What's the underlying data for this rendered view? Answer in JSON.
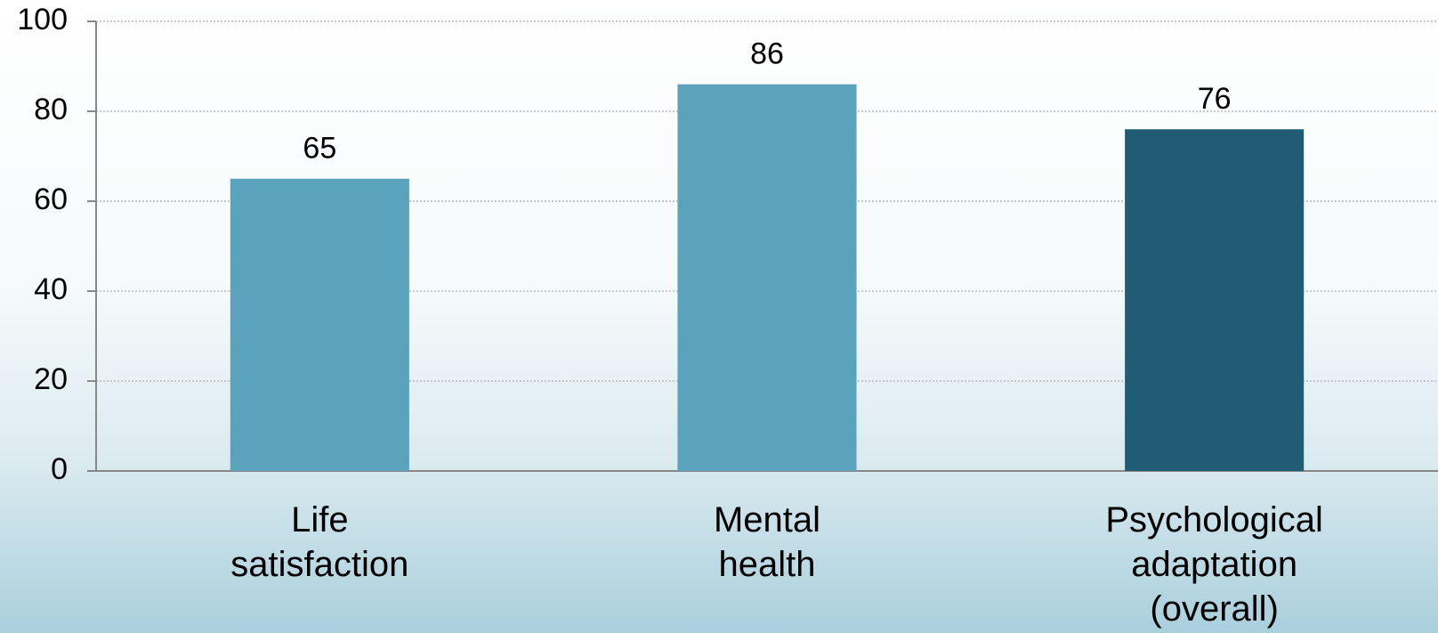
{
  "chart_data": {
    "type": "bar",
    "categories": [
      "Life satisfaction",
      "Mental health",
      "Psychological adaptation (overall)"
    ],
    "values": [
      65,
      86,
      76
    ],
    "colors": [
      "#5ba3bd",
      "#5ba3bd",
      "#215c75"
    ],
    "ylim": [
      0,
      100
    ],
    "yticks": [
      0,
      20,
      40,
      60,
      80,
      100
    ],
    "grid": true
  }
}
